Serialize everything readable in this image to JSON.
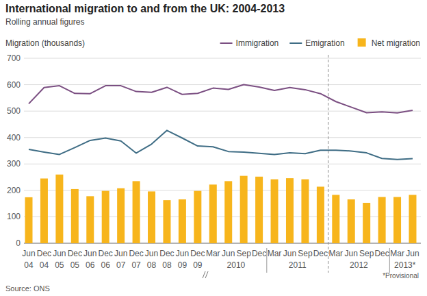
{
  "chart_data": {
    "type": "bar",
    "title": "International migration to and from the UK: 2004-2013",
    "subtitle": "Rolling annual figures",
    "y_label": "Migration (thousands)",
    "categories": [
      "Jun",
      "Dec",
      "Jun",
      "Dec",
      "Jun",
      "Dec",
      "Jun",
      "Dec",
      "Jun",
      "Dec",
      "Jun",
      "Dec",
      "Mar",
      "Jun",
      "Sep",
      "Dec",
      "Mar",
      "Jun",
      "Sep",
      "Dec",
      "Mar",
      "Jun",
      "Sep",
      "Dec",
      "Mar",
      "Jun"
    ],
    "groups": [
      {
        "label": "04",
        "count": 1
      },
      {
        "label": "04",
        "count": 1
      },
      {
        "label": "05",
        "count": 1
      },
      {
        "label": "05",
        "count": 1
      },
      {
        "label": "06",
        "count": 1
      },
      {
        "label": "06",
        "count": 1
      },
      {
        "label": "07",
        "count": 1
      },
      {
        "label": "07",
        "count": 1
      },
      {
        "label": "08",
        "count": 1
      },
      {
        "label": "08",
        "count": 1
      },
      {
        "label": "09",
        "count": 1
      },
      {
        "label": "09",
        "count": 1
      },
      {
        "label": "2010",
        "count": 4
      },
      {
        "label": "2011",
        "count": 4
      },
      {
        "label": "2012",
        "count": 4
      },
      {
        "label": "2013*",
        "count": 2
      }
    ],
    "series": [
      {
        "name": "Immigration",
        "type": "line",
        "color": "#7b4f82",
        "values": [
          528,
          589,
          596,
          567,
          566,
          596,
          596,
          574,
          571,
          590,
          563,
          567,
          587,
          582,
          600,
          591,
          578,
          589,
          581,
          566,
          536,
          515,
          494,
          497,
          493,
          503
        ]
      },
      {
        "name": "Emigration",
        "type": "line",
        "color": "#3f6d85",
        "values": [
          355,
          345,
          336,
          362,
          389,
          398,
          387,
          341,
          375,
          427,
          398,
          368,
          365,
          347,
          345,
          340,
          336,
          342,
          339,
          352,
          352,
          349,
          342,
          321,
          317,
          320
        ]
      },
      {
        "name": "Net migration",
        "type": "bar",
        "color": "#f7b51c",
        "values": [
          174,
          245,
          260,
          205,
          178,
          198,
          208,
          235,
          196,
          163,
          166,
          198,
          222,
          235,
          255,
          252,
          242,
          246,
          242,
          214,
          183,
          166,
          153,
          175,
          175,
          183
        ]
      }
    ],
    "ylim": [
      0,
      700
    ],
    "yticks": [
      0,
      100,
      200,
      300,
      400,
      500,
      600,
      700
    ],
    "grid": true,
    "legend": "top-right",
    "provisional_from": 20,
    "note": "*Provisional",
    "source": "Source: ONS"
  }
}
